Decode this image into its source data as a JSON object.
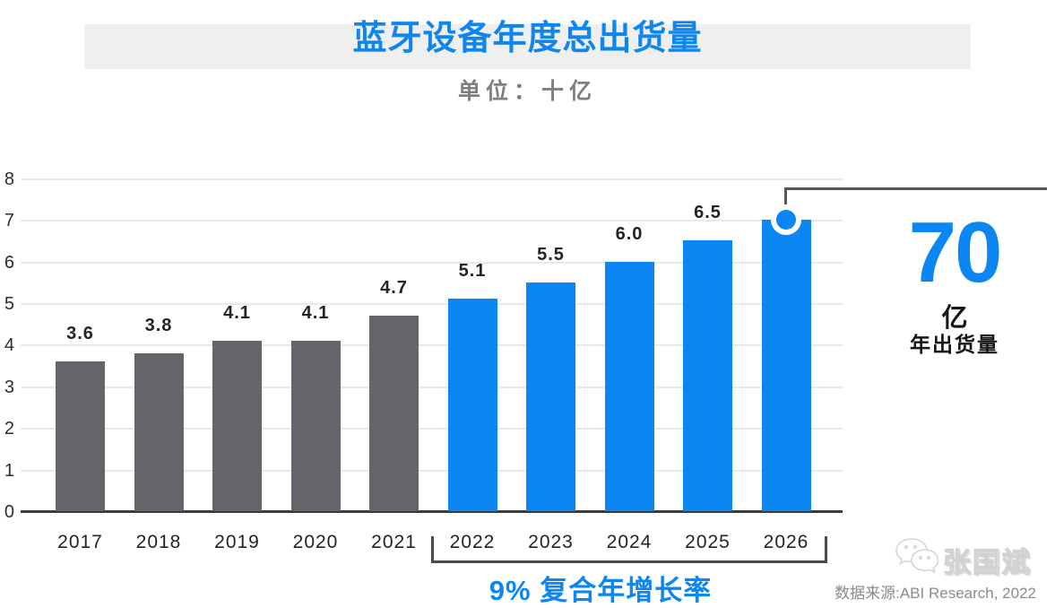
{
  "header": {
    "title": "蓝牙设备年度总出货量",
    "subtitle": "单位：十亿"
  },
  "chart_data": {
    "type": "bar",
    "categories": [
      "2017",
      "2018",
      "2019",
      "2020",
      "2021",
      "2022",
      "2023",
      "2024",
      "2025",
      "2026"
    ],
    "values": [
      3.6,
      3.8,
      4.1,
      4.1,
      4.7,
      5.1,
      5.5,
      6.0,
      6.5,
      7.0
    ],
    "bar_labels": [
      "3.6",
      "3.8",
      "4.1",
      "4.1",
      "4.7",
      "5.1",
      "5.5",
      "6.0",
      "6.5",
      null
    ],
    "title": "蓝牙设备年度总出货量",
    "xlabel": "",
    "ylabel": "",
    "unit": "十亿",
    "ylim": [
      0,
      8
    ],
    "yticks": [
      0,
      1,
      2,
      3,
      4,
      5,
      6,
      7,
      8
    ],
    "grid": "horizontal",
    "legend": "none",
    "forecast_start_index": 5,
    "colors": {
      "historical_bars": "#63656a",
      "forecast_bars": "#0c86f3"
    },
    "highlight": {
      "category": "2026",
      "marker": "circle-on-bar-top"
    }
  },
  "callout": {
    "value": "70",
    "unit": "亿",
    "label": "年出货量"
  },
  "cagr": {
    "text": "9% 复合年增长率"
  },
  "footer": {
    "watermark_name": "张国斌",
    "source": "数据来源:ABI Research, 2022"
  },
  "colors": {
    "accent_blue": "#0c86f3",
    "bar_gray": "#63656a",
    "banner_gray": "#f0efef",
    "line_dark": "#58585a"
  }
}
